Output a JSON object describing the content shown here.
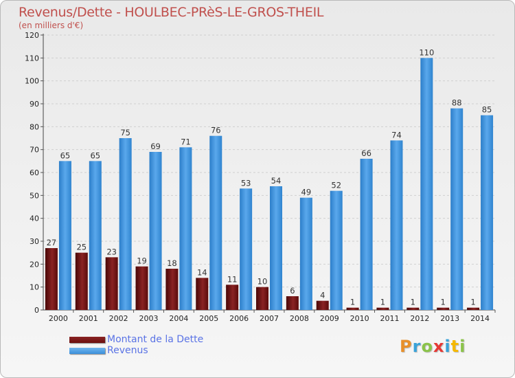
{
  "title": "Revenus/Dette - HOULBEC-PRèS-LE-GROS-THEIL",
  "subtitle": "(en milliers d'€)",
  "logo": {
    "text": "Proxiti",
    "colors": [
      "#e8902a",
      "#3aa3d9",
      "#8bc34a",
      "#e53935",
      "#3aa3d9",
      "#f5b800",
      "#8bc34a"
    ]
  },
  "colors": {
    "dette": "#6b1010",
    "revenus": "#3c8fd9",
    "title": "#c0504d",
    "legend_text": "#5a73e5"
  },
  "legend": [
    {
      "label": "Montant de la Dette"
    },
    {
      "label": "Revenus"
    }
  ],
  "chart_data": {
    "type": "bar",
    "title": "Revenus/Dette - HOULBEC-PRèS-LE-GROS-THEIL",
    "ylabel": "(en milliers d'€)",
    "ylim": [
      0,
      120
    ],
    "yticks": [
      0,
      10,
      20,
      30,
      40,
      50,
      60,
      70,
      80,
      90,
      100,
      110,
      120
    ],
    "categories": [
      "2000",
      "2001",
      "2002",
      "2003",
      "2004",
      "2005",
      "2006",
      "2007",
      "2008",
      "2009",
      "2010",
      "2011",
      "2012",
      "2013",
      "2014"
    ],
    "series": [
      {
        "name": "Montant de la Dette",
        "values": [
          27,
          25,
          23,
          19,
          18,
          14,
          11,
          10,
          6,
          4,
          1,
          1,
          1,
          1,
          1
        ]
      },
      {
        "name": "Revenus",
        "values": [
          65,
          65,
          75,
          69,
          71,
          76,
          53,
          54,
          49,
          52,
          66,
          74,
          110,
          88,
          85
        ]
      }
    ],
    "grid": true,
    "legend_position": "bottom-left"
  }
}
